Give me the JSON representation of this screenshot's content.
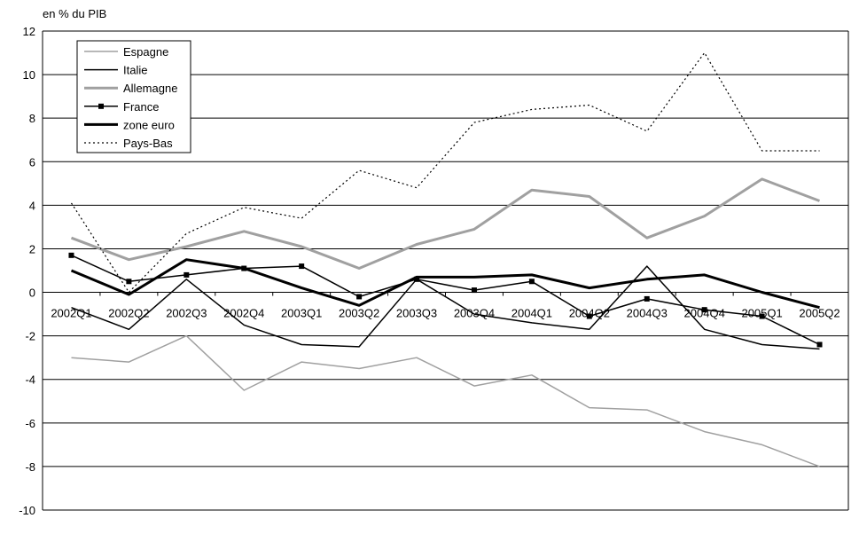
{
  "chart_data": {
    "type": "line",
    "unit_label": "en % du PIB",
    "categories": [
      "2002Q1",
      "2002Q2",
      "2002Q3",
      "2002Q4",
      "2003Q1",
      "2003Q2",
      "2003Q3",
      "2003Q4",
      "2004Q1",
      "2004Q2",
      "2004Q3",
      "2004Q4",
      "2005Q1",
      "2005Q2"
    ],
    "ylim": [
      -10,
      12
    ],
    "yticks": [
      12,
      10,
      8,
      6,
      4,
      2,
      0,
      -2,
      -4,
      -6,
      -8,
      -10
    ],
    "grid": true,
    "legend_position": "top-left",
    "series": [
      {
        "name": "Espagne",
        "color": "#a0a0a0",
        "style": "thin",
        "values": [
          -3.0,
          -3.2,
          -2.0,
          -4.5,
          -3.2,
          -3.5,
          -3.0,
          -4.3,
          -3.8,
          -5.3,
          -5.4,
          -6.4,
          -7.0,
          -8.0
        ]
      },
      {
        "name": "Italie",
        "color": "#000000",
        "style": "thin",
        "values": [
          -0.7,
          -1.7,
          0.6,
          -1.5,
          -2.4,
          -2.5,
          0.6,
          -1.0,
          -1.4,
          -1.7,
          1.2,
          -1.7,
          -2.4,
          -2.6
        ]
      },
      {
        "name": "Allemagne",
        "color": "#a0a0a0",
        "style": "thick",
        "values": [
          2.5,
          1.5,
          2.1,
          2.8,
          2.1,
          1.1,
          2.2,
          2.9,
          4.7,
          4.4,
          2.5,
          3.5,
          5.2,
          4.2
        ]
      },
      {
        "name": "France",
        "color": "#000000",
        "style": "marker",
        "values": [
          1.7,
          0.5,
          0.8,
          1.1,
          1.2,
          -0.2,
          0.6,
          0.1,
          0.5,
          -1.1,
          -0.3,
          -0.8,
          -1.1,
          -2.4
        ]
      },
      {
        "name": "zone euro",
        "color": "#000000",
        "style": "thick",
        "values": [
          1.0,
          -0.1,
          1.5,
          1.1,
          0.2,
          -0.6,
          0.7,
          0.7,
          0.8,
          0.2,
          0.6,
          0.8,
          0.0,
          -0.7
        ]
      },
      {
        "name": "Pays-Bas",
        "color": "#000000",
        "style": "dotted",
        "values": [
          4.1,
          0.0,
          2.7,
          3.9,
          3.4,
          5.6,
          4.8,
          7.8,
          8.4,
          8.6,
          7.4,
          11.0,
          6.5,
          6.5
        ]
      }
    ]
  }
}
